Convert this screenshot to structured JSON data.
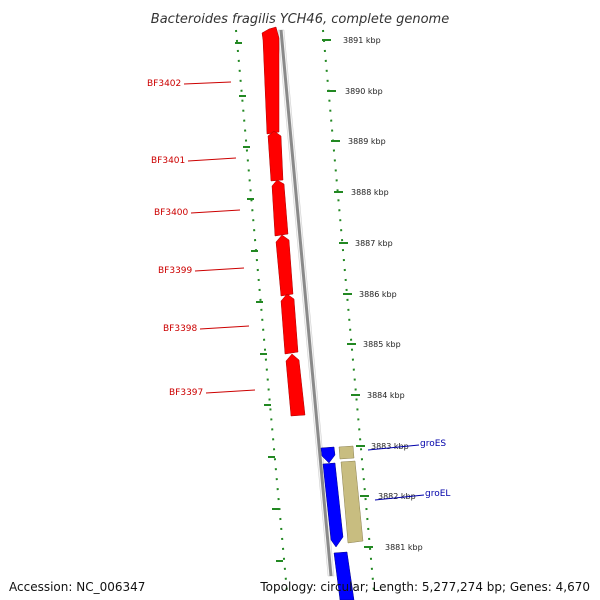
{
  "title": "Bacteroides fragilis YCH46, complete genome",
  "accession": "Accession: NC_006347",
  "summary": "Topology: circular; Length: 5,277,274 bp; Genes: 4,670",
  "colors": {
    "strand_reverse": "#ff0000",
    "strand_forward": "#0000ff",
    "other_feature": "#c8bd80",
    "backbone": "#8a8a8a",
    "ruler": "#228822",
    "label_red": "#cc0000",
    "label_blue": "#0000aa"
  },
  "ruler_kbp": [
    "3891 kbp",
    "3890 kbp",
    "3889 kbp",
    "3888 kbp",
    "3887 kbp",
    "3886 kbp",
    "3885 kbp",
    "3884 kbp",
    "3883 kbp",
    "3882 kbp",
    "3881 kbp"
  ],
  "genes": [
    {
      "name": "BF3402",
      "strand": "reverse"
    },
    {
      "name": "BF3401",
      "strand": "reverse"
    },
    {
      "name": "BF3400",
      "strand": "reverse"
    },
    {
      "name": "BF3399",
      "strand": "reverse"
    },
    {
      "name": "BF3398",
      "strand": "reverse"
    },
    {
      "name": "BF3397",
      "strand": "reverse"
    },
    {
      "name": "groES",
      "strand": "forward"
    },
    {
      "name": "groEL",
      "strand": "forward"
    }
  ]
}
